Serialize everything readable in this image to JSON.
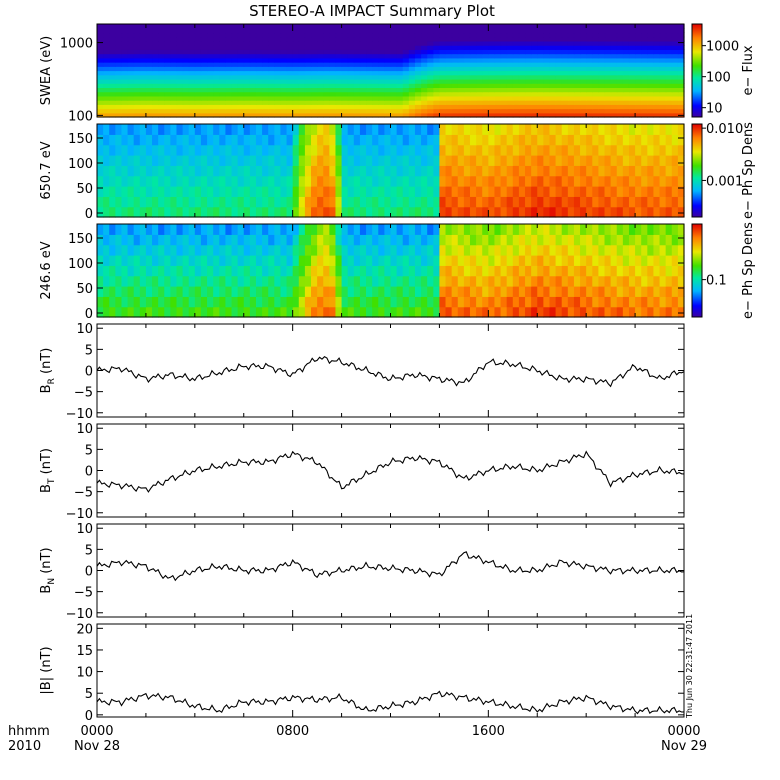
{
  "title": "STEREO-A IMPACT Summary Plot",
  "stamp": "Thu Jun 30 22:31:47 2011",
  "xaxis": {
    "corner_top": "hhmm",
    "corner_bottom": "2010",
    "ticks": [
      {
        "hour": 0,
        "top": "0000",
        "bottom": "Nov 28"
      },
      {
        "hour": 8,
        "top": "0800",
        "bottom": ""
      },
      {
        "hour": 16,
        "top": "1600",
        "bottom": ""
      },
      {
        "hour": 24,
        "top": "0000",
        "bottom": "Nov 29"
      }
    ]
  },
  "colors": {
    "line": "#000000",
    "frame": "#000000"
  },
  "chart_data": [
    {
      "type": "heatmap",
      "ylabel": "SWEA (eV)",
      "yscale": "log",
      "ylim": [
        95,
        1800
      ],
      "yticks": [
        {
          "value": 100,
          "label": "100"
        },
        {
          "value": 1000,
          "label": "1000"
        }
      ],
      "colorbar": {
        "label": "e− Flux",
        "scale": "log",
        "range": [
          5,
          5000
        ],
        "ticks": [
          {
            "value": 10,
            "label": "10"
          },
          {
            "value": 100,
            "label": "100"
          },
          {
            "value": 1000,
            "label": "1000"
          }
        ]
      },
      "x_hours": [
        0,
        2,
        4,
        6,
        8,
        9.5,
        11,
        12.5,
        14,
        16,
        18,
        20,
        22,
        24
      ],
      "flux_low_energy": [
        1200,
        1300,
        1250,
        1300,
        1250,
        1300,
        1250,
        1200,
        3000,
        3200,
        3300,
        3200,
        3100,
        3000
      ]
    },
    {
      "type": "heatmap",
      "ylabel": "650.7 eV",
      "ylim": [
        -8,
        178
      ],
      "yticks": [
        {
          "value": 0,
          "label": "0"
        },
        {
          "value": 50,
          "label": "50"
        },
        {
          "value": 100,
          "label": "100"
        },
        {
          "value": 150,
          "label": "150"
        }
      ],
      "colorbar": {
        "label": "e− Ph Sp Dens",
        "scale": "log",
        "range": [
          0.0002,
          0.012
        ],
        "ticks": [
          {
            "value": 0.001,
            "label": "0.001"
          },
          {
            "value": 0.01,
            "label": "0.010"
          }
        ]
      },
      "x_hours": [
        0,
        4,
        8,
        9,
        9.5,
        10,
        12,
        14,
        14.1,
        16,
        18,
        20,
        22,
        24
      ],
      "psd_low_pitch": [
        0.0013,
        0.0013,
        0.0013,
        0.008,
        0.009,
        0.0013,
        0.0013,
        0.0013,
        0.009,
        0.008,
        0.01,
        0.009,
        0.008,
        0.008
      ]
    },
    {
      "type": "heatmap",
      "ylabel": "246.6 eV",
      "ylim": [
        -8,
        178
      ],
      "yticks": [
        {
          "value": 0,
          "label": "0"
        },
        {
          "value": 50,
          "label": "50"
        },
        {
          "value": 100,
          "label": "100"
        },
        {
          "value": 150,
          "label": "150"
        }
      ],
      "colorbar": {
        "label": "e− Ph Sp Dens",
        "scale": "log",
        "range": [
          0.03,
          0.6
        ],
        "ticks": [
          {
            "value": 0.1,
            "label": "0.1"
          }
        ]
      },
      "x_hours": [
        0,
        4,
        8,
        9,
        9.5,
        10,
        12,
        14,
        14.1,
        16,
        18,
        20,
        22,
        24
      ],
      "psd_low_pitch": [
        0.15,
        0.15,
        0.15,
        0.4,
        0.45,
        0.15,
        0.15,
        0.15,
        0.45,
        0.4,
        0.5,
        0.45,
        0.4,
        0.4
      ]
    },
    {
      "type": "line",
      "ylabel": "B",
      "ylabel_sub": "R",
      "ylabel_unit": " (nT)",
      "ylim": [
        -11,
        11
      ],
      "yticks": [
        {
          "value": -10,
          "label": "−10"
        },
        {
          "value": -5,
          "label": "−5"
        },
        {
          "value": 0,
          "label": "0"
        },
        {
          "value": 5,
          "label": "5"
        },
        {
          "value": 10,
          "label": "10"
        }
      ],
      "x": [
        0,
        1,
        2,
        3,
        4,
        5,
        6,
        7,
        8,
        9,
        10,
        11,
        12,
        13,
        14,
        15,
        16,
        17,
        18,
        19,
        20,
        21,
        22,
        23,
        24
      ],
      "y": [
        0,
        0.5,
        -2,
        -1,
        -2,
        -0.5,
        1,
        1,
        -1,
        3,
        2,
        0,
        -2,
        -1,
        -2,
        -3,
        2,
        1.5,
        0,
        -2,
        -2,
        -3,
        1,
        -2,
        0
      ]
    },
    {
      "type": "line",
      "ylabel": "B",
      "ylabel_sub": "T",
      "ylabel_unit": " (nT)",
      "ylim": [
        -11,
        11
      ],
      "yticks": [
        {
          "value": -10,
          "label": "−10"
        },
        {
          "value": -5,
          "label": "−5"
        },
        {
          "value": 0,
          "label": "0"
        },
        {
          "value": 5,
          "label": "5"
        },
        {
          "value": 10,
          "label": "10"
        }
      ],
      "x": [
        0,
        1,
        2,
        3,
        4,
        5,
        6,
        7,
        8,
        9,
        10,
        11,
        12,
        13,
        14,
        15,
        16,
        17,
        18,
        19,
        20,
        21,
        22,
        23,
        24
      ],
      "y": [
        -3,
        -3.5,
        -4.5,
        -2,
        0,
        1,
        2,
        2,
        4,
        2,
        -4,
        -1,
        2,
        3,
        2,
        -2,
        0,
        1,
        0,
        2,
        4,
        -3,
        -1,
        0,
        -0.5
      ]
    },
    {
      "type": "line",
      "ylabel": "B",
      "ylabel_sub": "N",
      "ylabel_unit": " (nT)",
      "ylim": [
        -11,
        11
      ],
      "yticks": [
        {
          "value": -10,
          "label": "−10"
        },
        {
          "value": -5,
          "label": "−5"
        },
        {
          "value": 0,
          "label": "0"
        },
        {
          "value": 5,
          "label": "5"
        },
        {
          "value": 10,
          "label": "10"
        }
      ],
      "x": [
        0,
        1,
        2,
        3,
        4,
        5,
        6,
        7,
        8,
        9,
        10,
        11,
        12,
        13,
        14,
        15,
        16,
        17,
        18,
        19,
        20,
        21,
        22,
        23,
        24
      ],
      "y": [
        1,
        2,
        1,
        -2,
        0,
        1,
        0,
        0,
        2,
        -1,
        0,
        1,
        0.5,
        0,
        -1,
        4,
        2,
        0,
        0,
        2,
        1,
        0,
        0,
        0,
        0
      ]
    },
    {
      "type": "line",
      "ylabel": "|B|",
      "ylabel_sub": "",
      "ylabel_unit": " (nT)",
      "ylim": [
        -0.5,
        21
      ],
      "yticks": [
        {
          "value": 0,
          "label": "0"
        },
        {
          "value": 5,
          "label": "5"
        },
        {
          "value": 10,
          "label": "10"
        },
        {
          "value": 15,
          "label": "15"
        },
        {
          "value": 20,
          "label": "20"
        }
      ],
      "x": [
        0,
        1,
        2,
        3,
        4,
        5,
        6,
        7,
        8,
        9,
        10,
        11,
        12,
        13,
        14,
        15,
        16,
        17,
        18,
        19,
        20,
        21,
        22,
        23,
        24
      ],
      "y": [
        3,
        3,
        4.5,
        4,
        2,
        1,
        3,
        3,
        4,
        3.5,
        4,
        1,
        2,
        3,
        5,
        4,
        3,
        2,
        1,
        3,
        4,
        2,
        1,
        1,
        1
      ]
    }
  ]
}
